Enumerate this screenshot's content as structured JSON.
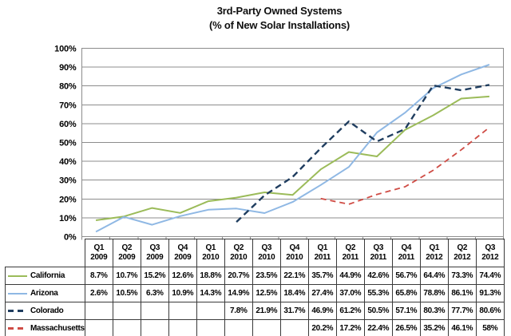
{
  "title": {
    "line1": "3rd-Party Owned Systems",
    "line2": "(% of New Solar Installations)"
  },
  "chart_data": {
    "type": "line",
    "title": "3rd-Party Owned Systems",
    "subtitle": "(% of New Solar Installations)",
    "xlabel": "",
    "ylabel": "",
    "grid": true,
    "legend_position": "table-left",
    "y_axis": {
      "min": 0,
      "max": 100,
      "step": 10,
      "ticks": [
        "0%",
        "10%",
        "20%",
        "30%",
        "40%",
        "50%",
        "60%",
        "70%",
        "80%",
        "90%",
        "100%"
      ]
    },
    "categories": [
      "Q1 2009",
      "Q2 2009",
      "Q3 2009",
      "Q4 2009",
      "Q1 2010",
      "Q2 2010",
      "Q3 2010",
      "Q4 2010",
      "Q1 2011",
      "Q2 2011",
      "Q3 2011",
      "Q4 2011",
      "Q1 2012",
      "Q2 2012",
      "Q3 2012"
    ],
    "colors": {
      "grid": "#8c8c8c",
      "table_border": "#3a3a3a"
    },
    "series": [
      {
        "name": "California",
        "color": "#9BBB59",
        "dash": "solid",
        "width": 2,
        "values": [
          8.7,
          10.7,
          15.2,
          12.6,
          18.8,
          20.7,
          23.5,
          22.1,
          35.7,
          44.9,
          42.6,
          56.7,
          64.4,
          73.3,
          74.4
        ],
        "labels": [
          "8.7%",
          "10.7%",
          "15.2%",
          "12.6%",
          "18.8%",
          "20.7%",
          "23.5%",
          "22.1%",
          "35.7%",
          "44.9%",
          "42.6%",
          "56.7%",
          "64.4%",
          "73.3%",
          "74.4%"
        ]
      },
      {
        "name": "Arizona",
        "color": "#8FB8E4",
        "dash": "solid",
        "width": 2,
        "values": [
          2.6,
          10.5,
          6.3,
          10.9,
          14.3,
          14.9,
          12.5,
          18.4,
          27.4,
          37.0,
          55.3,
          65.8,
          78.8,
          86.1,
          91.3
        ],
        "labels": [
          "2.6%",
          "10.5%",
          "6.3%",
          "10.9%",
          "14.3%",
          "14.9%",
          "12.5%",
          "18.4%",
          "27.4%",
          "37.0%",
          "55.3%",
          "65.8%",
          "78.8%",
          "86.1%",
          "91.3%"
        ]
      },
      {
        "name": "Colorado",
        "color": "#1F3D5F",
        "dash": "8 5",
        "width": 2.4,
        "values": [
          null,
          null,
          null,
          null,
          null,
          7.8,
          21.9,
          31.7,
          46.9,
          61.2,
          50.5,
          57.1,
          80.3,
          77.7,
          80.6
        ],
        "labels": [
          "",
          "",
          "",
          "",
          "",
          "7.8%",
          "21.9%",
          "31.7%",
          "46.9%",
          "61.2%",
          "50.5%",
          "57.1%",
          "80.3%",
          "77.7%",
          "80.6%"
        ]
      },
      {
        "name": "Massachusetts",
        "color": "#CF4C45",
        "dash": "7 5",
        "width": 1.8,
        "values": [
          null,
          null,
          null,
          null,
          null,
          null,
          null,
          null,
          20.2,
          17.2,
          22.4,
          26.5,
          35.2,
          46.1,
          58
        ],
        "labels": [
          "",
          "",
          "",
          "",
          "",
          "",
          "",
          "",
          "20.2%",
          "17.2%",
          "22.4%",
          "26.5%",
          "35.2%",
          "46.1%",
          "58%"
        ]
      }
    ]
  }
}
